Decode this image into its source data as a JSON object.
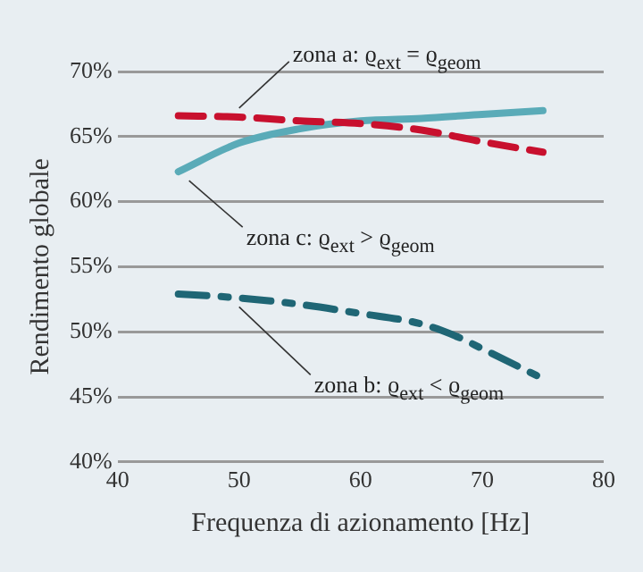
{
  "chart_data": {
    "type": "line",
    "xlabel": "Frequenza di azionamento [Hz]",
    "ylabel": "Rendimento globale",
    "xlim": [
      40,
      80
    ],
    "xticks": [
      40,
      50,
      60,
      70,
      80
    ],
    "ylim": [
      40,
      70
    ],
    "yticks": [
      {
        "value": 40,
        "label": "40%"
      },
      {
        "value": 45,
        "label": "45%"
      },
      {
        "value": 50,
        "label": "50%"
      },
      {
        "value": 55,
        "label": "55%"
      },
      {
        "value": 60,
        "label": "60%"
      },
      {
        "value": 65,
        "label": "65%"
      },
      {
        "value": 70,
        "label": "70%"
      }
    ],
    "grid": "y",
    "legend": false,
    "marker": "none",
    "series": [
      {
        "name": "zona a: ϱ$_{ext}$ = ϱ$_{geom}$",
        "color": "#c8102e",
        "line_style": "dashed",
        "x": [
          45,
          50,
          55,
          60,
          65,
          70,
          75
        ],
        "values": [
          66.6,
          66.5,
          66.2,
          66,
          65.5,
          64.6,
          63.8
        ]
      },
      {
        "name": "zona c: ϱ$_{ext}$ > ϱ$_{geom}$",
        "color": "#5aabb8",
        "line_style": "solid",
        "x": [
          45,
          50,
          55,
          60,
          65,
          70,
          75
        ],
        "values": [
          62.3,
          64.5,
          65.6,
          66.2,
          66.4,
          66.7,
          67
        ]
      },
      {
        "name": "zona b: ϱ$_{ext}$ < ϱ$_{geom}$",
        "color": "#1f6675",
        "line_style": "dashdot",
        "x": [
          45,
          50,
          55,
          60,
          65,
          68,
          70,
          75
        ],
        "values": [
          52.9,
          52.6,
          52.1,
          51.4,
          50.6,
          49.6,
          48.7,
          46.4
        ]
      }
    ]
  }
}
